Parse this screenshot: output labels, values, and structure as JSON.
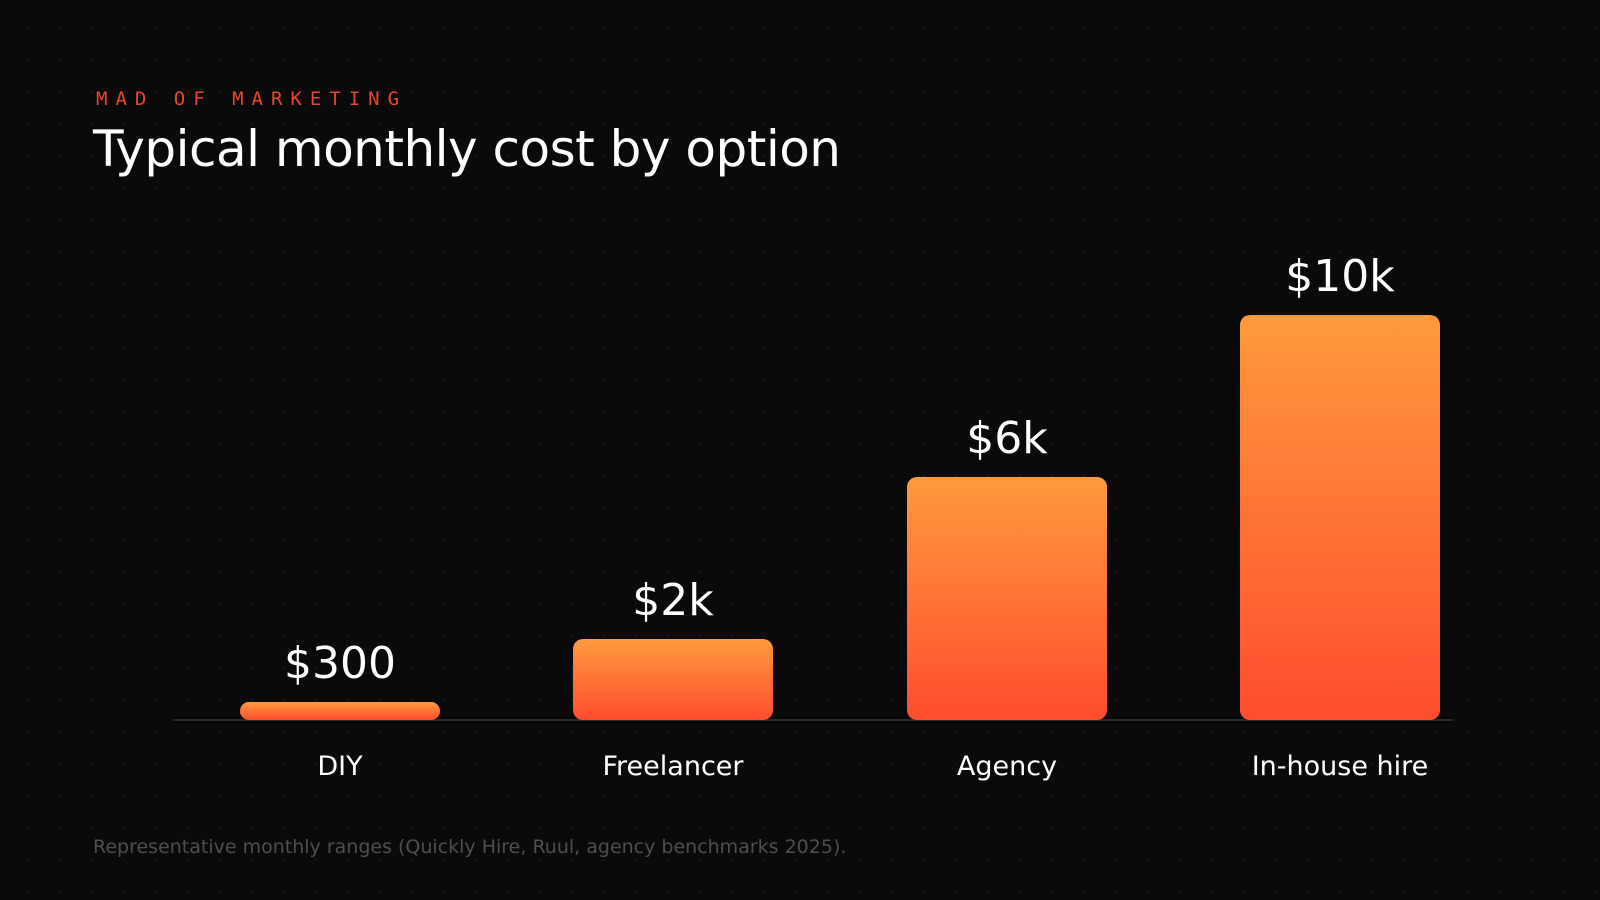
{
  "eyebrow": "MAD OF MARKETING",
  "colors": {
    "background": "#0a0a0a",
    "accent": "#e8452c",
    "bar_top": "#ff9a3d",
    "bar_bottom": "#ff4d2e",
    "baseline": "#2a2a2a",
    "source_text": "#4e4e4e"
  },
  "chart_data": {
    "type": "bar",
    "title": "Typical monthly cost by option",
    "categories": [
      "DIY",
      "Freelancer",
      "Agency",
      "In-house hire"
    ],
    "values": [
      300,
      2000,
      6000,
      10000
    ],
    "data_labels": [
      "$300",
      "$2k",
      "$6k",
      "$10k"
    ],
    "xlabel": "",
    "ylabel": "",
    "ylim": [
      0,
      10000
    ],
    "grid": false,
    "legend": "none"
  },
  "footer": {
    "source": "Representative monthly ranges (Quickly Hire, Ruul, agency benchmarks 2025)."
  }
}
